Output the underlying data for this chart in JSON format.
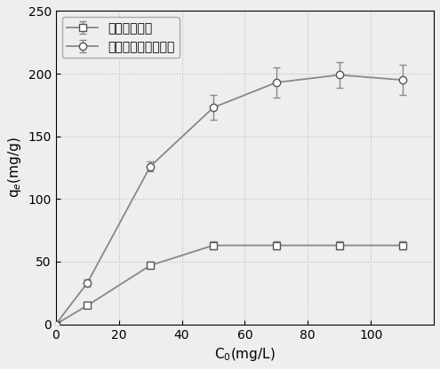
{
  "series1_label": "水热生物质炭",
  "series2_label": "羧基化水热生物质炭",
  "series1_x": [
    0,
    10,
    30,
    50,
    70,
    90,
    110
  ],
  "series1_y": [
    0,
    15,
    47,
    63,
    63,
    63,
    63
  ],
  "series1_yerr": [
    0,
    2,
    3,
    3,
    3,
    3,
    3
  ],
  "series2_x": [
    0,
    10,
    30,
    50,
    70,
    90,
    110
  ],
  "series2_y": [
    0,
    33,
    126,
    173,
    193,
    199,
    195
  ],
  "series2_yerr": [
    0,
    3,
    4,
    10,
    12,
    10,
    12
  ],
  "xlabel": "C$_0$(mg/L)",
  "ylabel": "q$_e$(mg/g)",
  "xlim": [
    0,
    120
  ],
  "ylim": [
    0,
    250
  ],
  "xticks": [
    0,
    20,
    40,
    60,
    80,
    100
  ],
  "yticks": [
    0,
    50,
    100,
    150,
    200,
    250
  ],
  "line_color": "#888888",
  "marker1": "s",
  "marker2": "o",
  "marker_facecolor": "white",
  "marker_edgecolor": "#555555",
  "marker_size": 6,
  "line_width": 1.3,
  "grid": true,
  "grid_color": "#bbbbbb",
  "grid_linestyle": ":",
  "background_color": "#eeeeee",
  "plot_bg_color": "#eeeeee",
  "legend_loc": "upper left",
  "font_size": 11,
  "tick_font_size": 10,
  "capsize": 3,
  "elinewidth": 1.0
}
